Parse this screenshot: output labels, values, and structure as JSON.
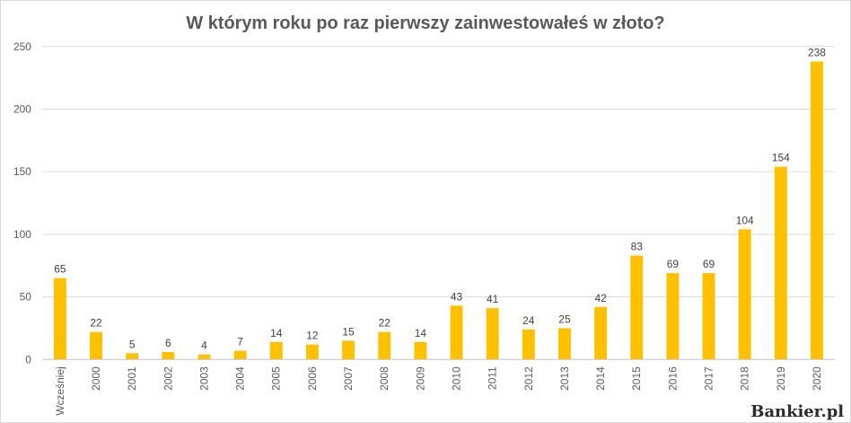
{
  "brand": "Bankier.pl",
  "chart_data": {
    "type": "bar",
    "title": "W którym roku po raz pierwszy zainwestowałeś w złoto?",
    "xlabel": "",
    "ylabel": "",
    "ylim": [
      0,
      250
    ],
    "yticks": [
      0,
      50,
      100,
      150,
      200,
      250
    ],
    "grid": true,
    "legend": "none",
    "bar_color": "#FFC000",
    "categories": [
      "Wcześniej",
      "2000",
      "2001",
      "2002",
      "2003",
      "2004",
      "2005",
      "2006",
      "2007",
      "2008",
      "2009",
      "2010",
      "2011",
      "2012",
      "2013",
      "2014",
      "2015",
      "2016",
      "2017",
      "2018",
      "2019",
      "2020"
    ],
    "values": [
      65,
      22,
      5,
      6,
      4,
      7,
      14,
      12,
      15,
      22,
      14,
      43,
      41,
      24,
      25,
      42,
      83,
      69,
      69,
      104,
      154,
      238
    ]
  }
}
